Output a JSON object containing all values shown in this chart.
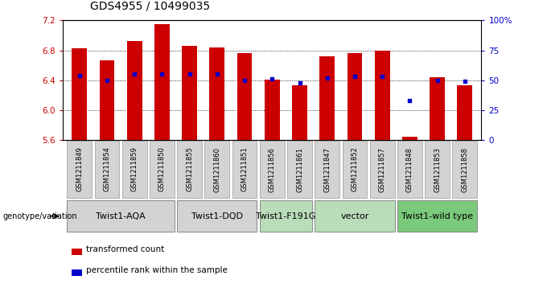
{
  "title": "GDS4955 / 10499035",
  "samples": [
    "GSM1211849",
    "GSM1211854",
    "GSM1211859",
    "GSM1211850",
    "GSM1211855",
    "GSM1211860",
    "GSM1211851",
    "GSM1211856",
    "GSM1211861",
    "GSM1211847",
    "GSM1211852",
    "GSM1211857",
    "GSM1211848",
    "GSM1211853",
    "GSM1211858"
  ],
  "transformed_counts": [
    6.83,
    6.67,
    6.93,
    7.15,
    6.86,
    6.84,
    6.76,
    6.41,
    6.33,
    6.72,
    6.76,
    6.8,
    5.65,
    6.44,
    6.33
  ],
  "percentile_ranks": [
    54,
    50,
    55,
    55,
    55,
    55,
    50,
    51,
    48,
    52,
    53,
    53,
    33,
    50,
    49
  ],
  "groups": [
    {
      "label": "Twist1-AQA",
      "indices": [
        0,
        1,
        2,
        3
      ],
      "color": "#d3d3d3"
    },
    {
      "label": "Twist1-DQD",
      "indices": [
        4,
        5,
        6
      ],
      "color": "#d3d3d3"
    },
    {
      "label": "Twist1-F191G",
      "indices": [
        7,
        8
      ],
      "color": "#b8ddb8"
    },
    {
      "label": "vector",
      "indices": [
        9,
        10,
        11
      ],
      "color": "#b8ddb8"
    },
    {
      "label": "Twist1-wild type",
      "indices": [
        12,
        13,
        14
      ],
      "color": "#7bc97b"
    }
  ],
  "ylim": [
    5.6,
    7.2
  ],
  "yticks": [
    5.6,
    6.0,
    6.4,
    6.8,
    7.2
  ],
  "right_yticks": [
    0,
    25,
    50,
    75,
    100
  ],
  "bar_color": "#cc0000",
  "dot_color": "#0000cc",
  "bar_width": 0.55,
  "genotype_label": "genotype/variation",
  "legend_transformed": "transformed count",
  "legend_percentile": "percentile rank within the sample",
  "title_fontsize": 10,
  "tick_fontsize": 7.5,
  "sample_fontsize": 6,
  "group_fontsize": 8
}
